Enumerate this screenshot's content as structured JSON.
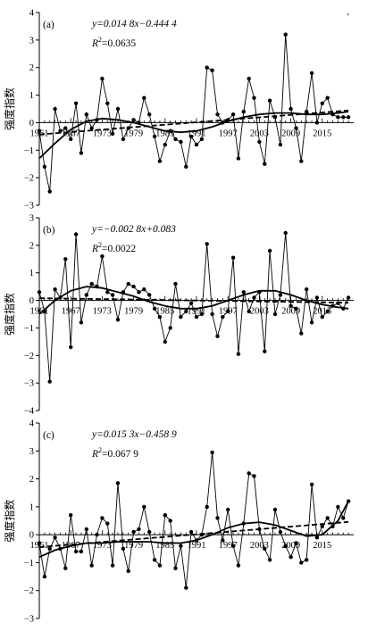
{
  "chart_data": [
    {
      "type": "line",
      "panel_label": "(a)",
      "equation": "y=0.014 8x−0.444 4",
      "r2_label": "R",
      "r2_value": "=0.0635",
      "ylabel": "强度指数",
      "xlim": [
        1961,
        2021
      ],
      "ylim": [
        -3,
        4
      ],
      "yticks": [
        "−3",
        "−2",
        "−1",
        "0",
        "1",
        "2",
        "3",
        "4"
      ],
      "xticks": [
        "1961",
        "1967",
        "1973",
        "1979",
        "1985",
        "1991",
        "1997",
        "2003",
        "2009",
        "2015"
      ],
      "x": [
        1961,
        1962,
        1963,
        1964,
        1965,
        1966,
        1967,
        1968,
        1969,
        1970,
        1971,
        1972,
        1973,
        1974,
        1975,
        1976,
        1977,
        1978,
        1979,
        1980,
        1981,
        1982,
        1983,
        1984,
        1985,
        1986,
        1987,
        1988,
        1989,
        1990,
        1991,
        1992,
        1993,
        1994,
        1995,
        1996,
        1997,
        1998,
        1999,
        2000,
        2001,
        2002,
        2003,
        2004,
        2005,
        2006,
        2007,
        2008,
        2009,
        2010,
        2011,
        2012,
        2013,
        2014,
        2015,
        2016,
        2017,
        2018,
        2019,
        2020
      ],
      "series": [
        {
          "values": [
            -0.3,
            -1.6,
            -2.5,
            0.5,
            -0.3,
            -0.2,
            -0.6,
            0.7,
            -1.1,
            0.3,
            -0.2,
            0.1,
            1.6,
            0.7,
            -0.4,
            0.5,
            -0.6,
            -0.2,
            0.1,
            0.0,
            0.9,
            0.3,
            -0.5,
            -1.4,
            -0.8,
            -0.3,
            -0.6,
            -0.7,
            -1.6,
            -0.5,
            -0.8,
            -0.6,
            2.0,
            1.9,
            0.3,
            0.0,
            0.1,
            0.3,
            -1.3,
            0.4,
            1.6,
            0.9,
            -0.7,
            -1.5,
            0.8,
            0.2,
            -0.8,
            3.2,
            0.5,
            -0.2,
            -1.4,
            0.4,
            1.8,
            0.0,
            0.7,
            0.9,
            0.3,
            0.2,
            0.2,
            0.2
          ]
        }
      ],
      "linear_fit": {
        "slope": 0.0148,
        "intercept": -0.4444
      },
      "poly_fit": {
        "x": [
          1961,
          1964,
          1967,
          1970,
          1973,
          1976,
          1979,
          1982,
          1985,
          1988,
          1991,
          1994,
          1997,
          2000,
          2003,
          2006,
          2009,
          2012,
          2015,
          2018,
          2020
        ],
        "y": [
          -1.3,
          -0.75,
          -0.25,
          0.05,
          0.15,
          0.1,
          0.0,
          -0.15,
          -0.3,
          -0.35,
          -0.3,
          -0.15,
          0.05,
          0.2,
          0.3,
          0.35,
          0.35,
          0.3,
          0.3,
          0.35,
          0.4
        ]
      }
    },
    {
      "type": "line",
      "panel_label": "(b)",
      "equation": "y=−0.002 8x+0.083",
      "r2_label": "R",
      "r2_value": "=0.0022",
      "ylabel": "强度指数",
      "xlim": [
        1961,
        2021
      ],
      "ylim": [
        -4,
        3
      ],
      "yticks": [
        "−4",
        "−3",
        "−2",
        "−1",
        "0",
        "1",
        "2",
        "3"
      ],
      "xticks": [
        "1961",
        "1967",
        "1973",
        "1979",
        "1985",
        "1991",
        "1997",
        "2003",
        "2009",
        "2015"
      ],
      "x": [
        1961,
        1962,
        1963,
        1964,
        1965,
        1966,
        1967,
        1968,
        1969,
        1970,
        1971,
        1972,
        1973,
        1974,
        1975,
        1976,
        1977,
        1978,
        1979,
        1980,
        1981,
        1982,
        1983,
        1984,
        1985,
        1986,
        1987,
        1988,
        1989,
        1990,
        1991,
        1992,
        1993,
        1994,
        1995,
        1996,
        1997,
        1998,
        1999,
        2000,
        2001,
        2002,
        2003,
        2004,
        2005,
        2006,
        2007,
        2008,
        2009,
        2010,
        2011,
        2012,
        2013,
        2014,
        2015,
        2016,
        2017,
        2018,
        2019,
        2020
      ],
      "series": [
        {
          "values": [
            0.3,
            -0.4,
            -2.95,
            0.4,
            0.1,
            1.5,
            -1.7,
            2.4,
            -0.8,
            0.2,
            0.6,
            0.5,
            1.6,
            0.3,
            0.2,
            -0.7,
            0.3,
            0.6,
            0.5,
            0.3,
            0.4,
            0.2,
            -0.3,
            -0.6,
            -1.5,
            -1.0,
            0.6,
            -0.6,
            -0.4,
            -0.1,
            -0.6,
            -0.5,
            2.05,
            -0.5,
            -1.3,
            -0.6,
            -0.4,
            1.55,
            -1.95,
            0.3,
            -0.4,
            0.1,
            0.3,
            -1.85,
            1.8,
            -0.5,
            0.2,
            2.45,
            -0.2,
            -0.3,
            -1.2,
            0.4,
            -0.8,
            0.1,
            -0.6,
            -0.4,
            -0.2,
            -0.1,
            -0.3,
            0.1
          ]
        }
      ],
      "linear_fit": {
        "slope": -0.0028,
        "intercept": 0.083
      },
      "poly_fit": {
        "x": [
          1961,
          1964,
          1967,
          1970,
          1973,
          1976,
          1979,
          1982,
          1985,
          1988,
          1991,
          1994,
          1997,
          2000,
          2003,
          2006,
          2009,
          2012,
          2015,
          2018,
          2020
        ],
        "y": [
          -0.5,
          0.0,
          0.35,
          0.5,
          0.45,
          0.3,
          0.15,
          -0.05,
          -0.2,
          -0.3,
          -0.3,
          -0.2,
          0.0,
          0.2,
          0.35,
          0.35,
          0.2,
          0.0,
          -0.15,
          -0.25,
          -0.3
        ]
      }
    },
    {
      "type": "line",
      "panel_label": "(c)",
      "equation": "y=0.015 3x−0.458 9",
      "r2_label": "R",
      "r2_value": "=0.067 9",
      "ylabel": "强度指数",
      "xlim": [
        1961,
        2021
      ],
      "ylim": [
        -3,
        4
      ],
      "yticks": [
        "−3",
        "−2",
        "−1",
        "0",
        "1",
        "2",
        "3",
        "4"
      ],
      "xticks": [
        "1961",
        "1967",
        "1973",
        "1979",
        "1985",
        "1991",
        "1997",
        "2003",
        "2009",
        "2015"
      ],
      "x": [
        1961,
        1962,
        1963,
        1964,
        1965,
        1966,
        1967,
        1968,
        1969,
        1970,
        1971,
        1972,
        1973,
        1974,
        1975,
        1976,
        1977,
        1978,
        1979,
        1980,
        1981,
        1982,
        1983,
        1984,
        1985,
        1986,
        1987,
        1988,
        1989,
        1990,
        1991,
        1992,
        1993,
        1994,
        1995,
        1996,
        1997,
        1998,
        1999,
        2000,
        2001,
        2002,
        2003,
        2004,
        2005,
        2006,
        2007,
        2008,
        2009,
        2010,
        2011,
        2012,
        2013,
        2014,
        2015,
        2016,
        2017,
        2018,
        2019,
        2020
      ],
      "series": [
        {
          "values": [
            -0.3,
            -1.5,
            -0.5,
            -0.1,
            -0.5,
            -1.2,
            0.7,
            -0.6,
            -0.6,
            0.2,
            -1.1,
            0.0,
            0.6,
            0.4,
            -1.1,
            1.85,
            -0.5,
            -1.3,
            0.1,
            0.2,
            1.0,
            0.1,
            -0.9,
            -1.1,
            0.7,
            0.5,
            -1.2,
            -0.4,
            -1.9,
            0.1,
            -0.2,
            0.0,
            1.0,
            2.95,
            0.6,
            -0.2,
            0.9,
            -0.4,
            -1.1,
            0.4,
            2.2,
            2.1,
            0.2,
            -0.5,
            -0.9,
            0.9,
            0.1,
            -0.4,
            -0.8,
            -0.3,
            -1.0,
            -0.9,
            1.8,
            -0.1,
            0.3,
            0.6,
            0.3,
            1.0,
            0.6,
            1.2
          ]
        }
      ],
      "linear_fit": {
        "slope": 0.0153,
        "intercept": -0.4589
      },
      "poly_fit": {
        "x": [
          1961,
          1964,
          1967,
          1970,
          1973,
          1976,
          1979,
          1982,
          1985,
          1988,
          1991,
          1994,
          1997,
          2000,
          2003,
          2006,
          2009,
          2012,
          2015,
          2018,
          2020
        ],
        "y": [
          -0.8,
          -0.55,
          -0.4,
          -0.3,
          -0.3,
          -0.25,
          -0.25,
          -0.25,
          -0.3,
          -0.3,
          -0.2,
          0.0,
          0.25,
          0.4,
          0.45,
          0.35,
          0.15,
          -0.05,
          0.0,
          0.5,
          1.2
        ]
      }
    }
  ]
}
